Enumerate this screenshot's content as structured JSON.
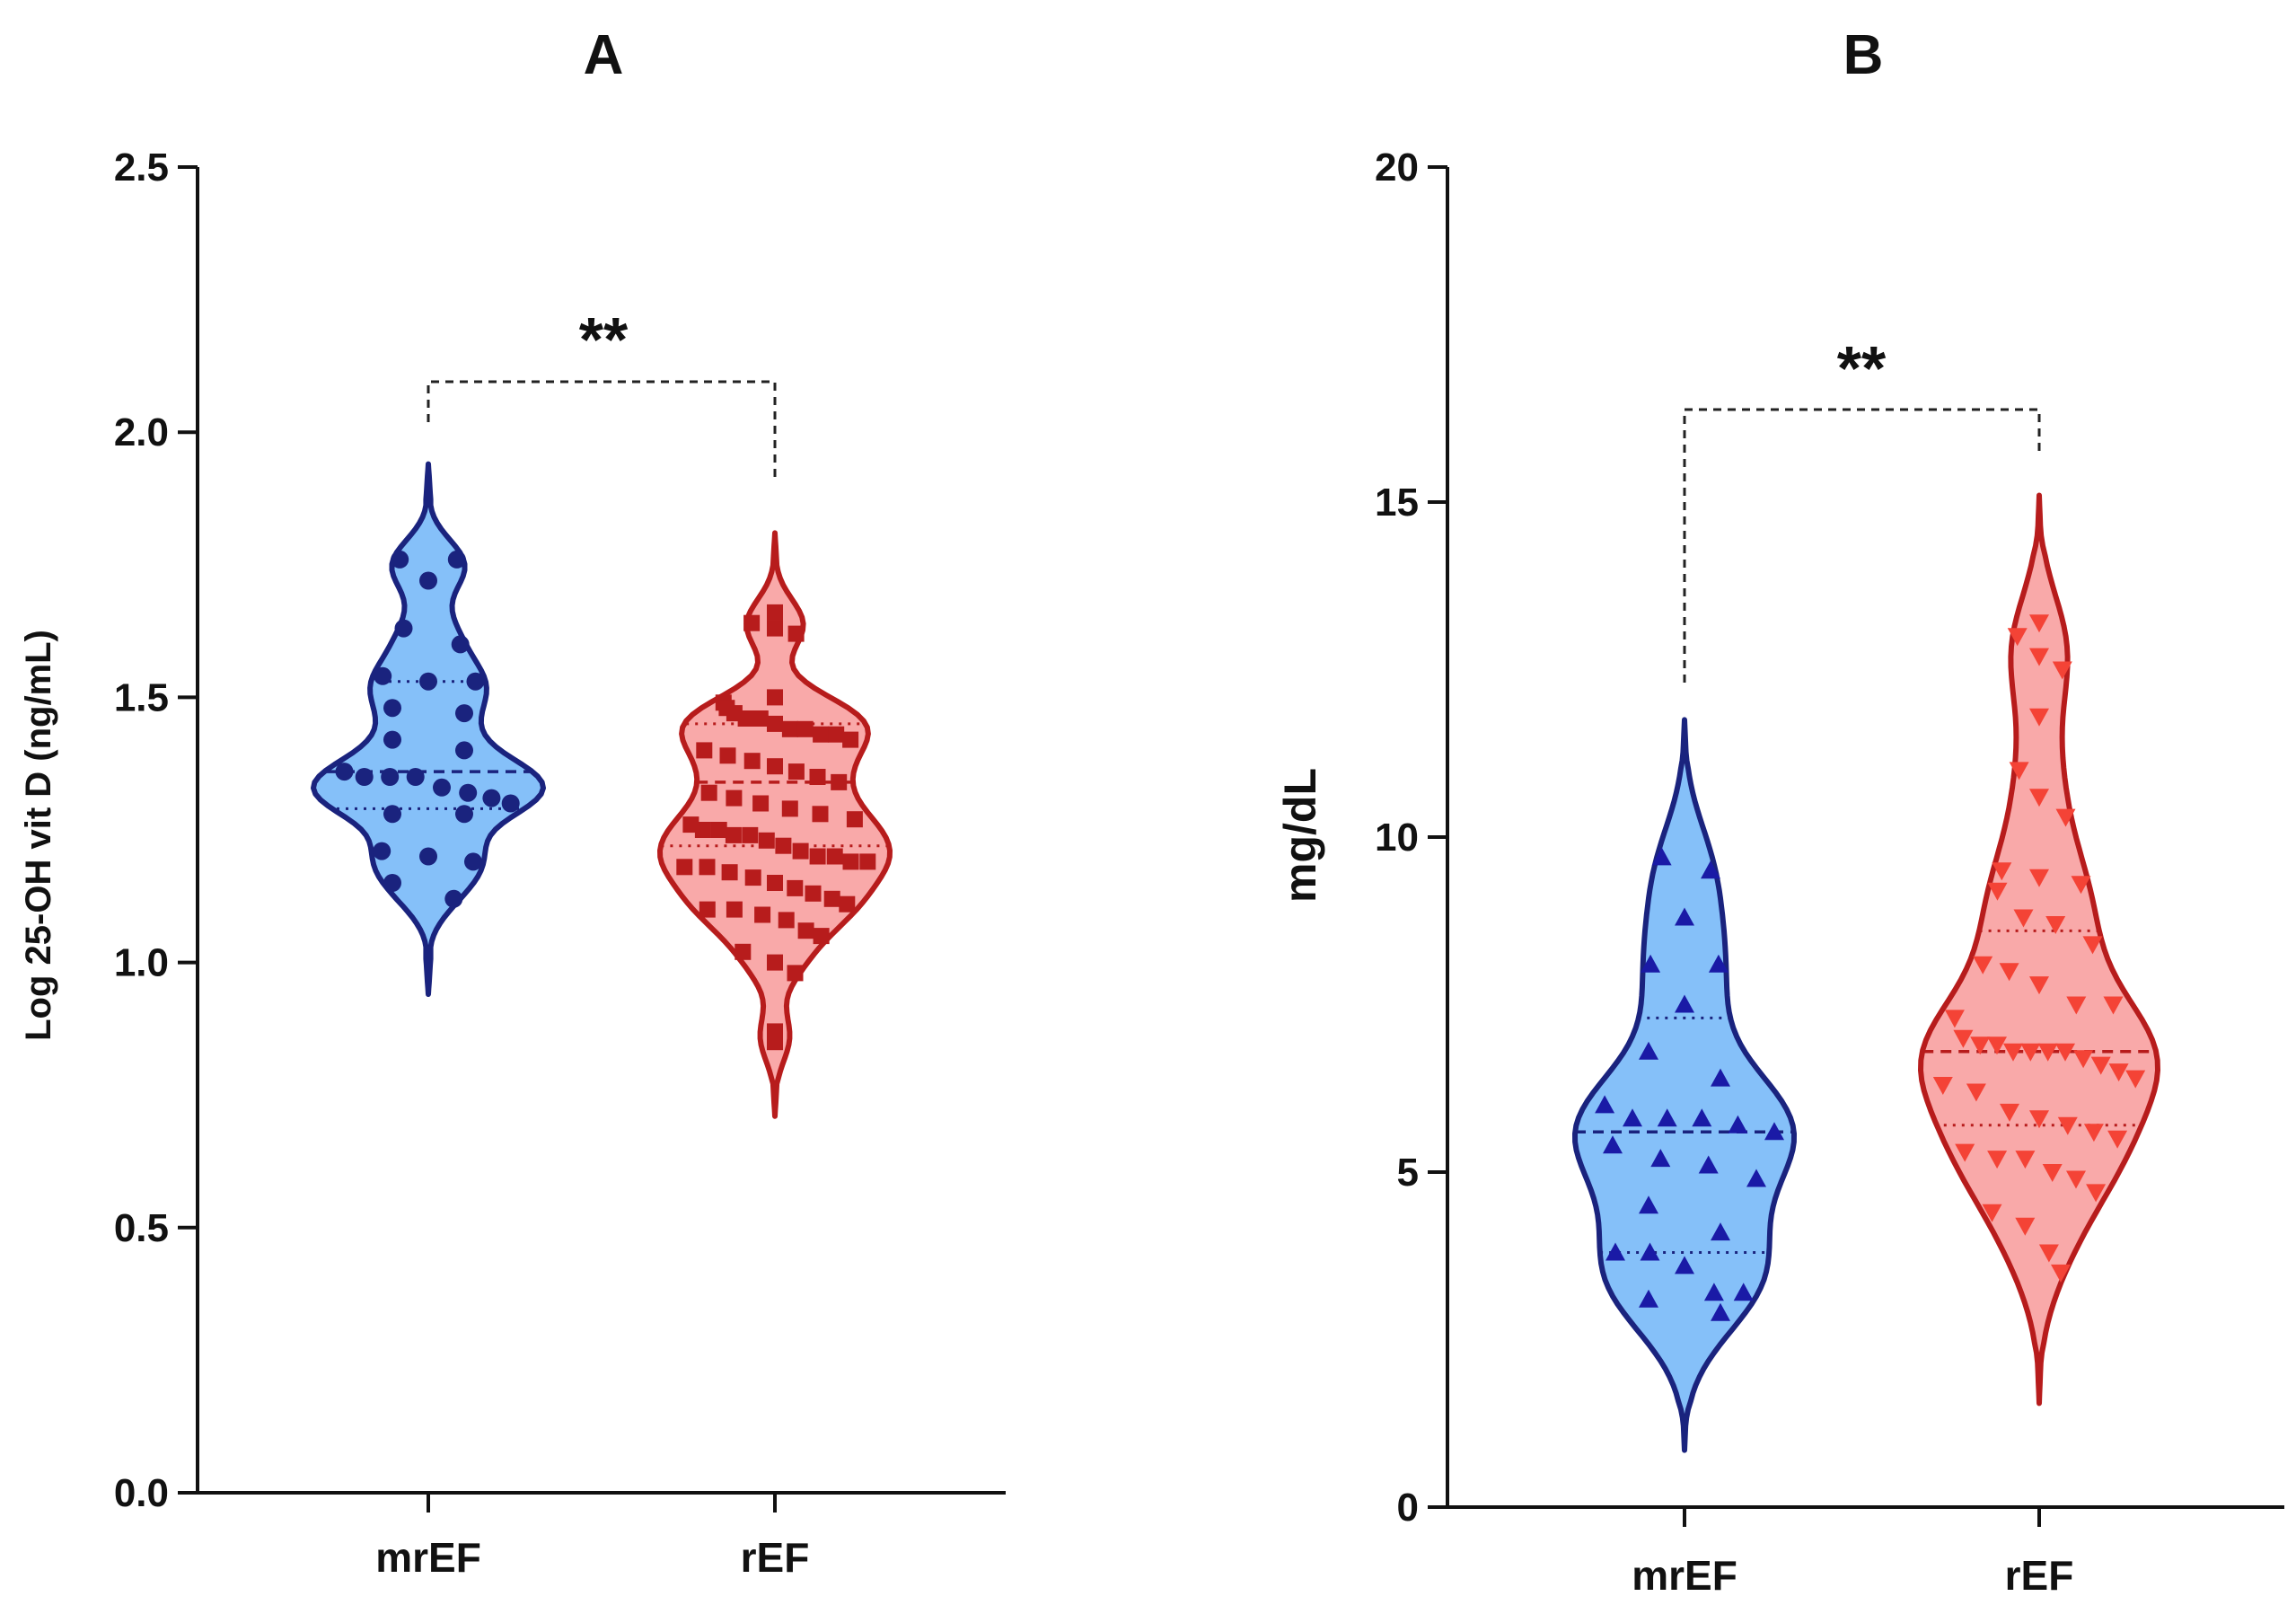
{
  "chart_data": [
    {
      "type": "violin",
      "panel": "A",
      "title": "A",
      "xlabel": "",
      "ylabel": "Log 25-OH vit D (ng/mL)",
      "ylim": [
        0.0,
        2.5
      ],
      "yticks": [
        0.0,
        0.5,
        1.0,
        1.5,
        2.0,
        2.5
      ],
      "ytick_labels": [
        "0.0",
        "0.5",
        "1.0",
        "1.5",
        "2.0",
        "2.5"
      ],
      "categories": [
        "mrEF",
        "rEF"
      ],
      "significance": "**",
      "series": [
        {
          "name": "mrEF",
          "fill": "#85c0f9",
          "stroke": "#1a237e",
          "point_color": "#1a237e",
          "marker": "circle",
          "range": [
            0.94,
            1.94
          ],
          "median": 1.36,
          "q1": 1.29,
          "q3": 1.53,
          "values": [
            1.76,
            1.76,
            1.72,
            1.63,
            1.6,
            1.54,
            1.53,
            1.53,
            1.48,
            1.47,
            1.42,
            1.4,
            1.36,
            1.35,
            1.35,
            1.35,
            1.33,
            1.32,
            1.31,
            1.3,
            1.28,
            1.28,
            1.21,
            1.2,
            1.19,
            1.15,
            1.12
          ]
        },
        {
          "name": "rEF",
          "fill": "#f9a9a9",
          "stroke": "#b71c1c",
          "point_color": "#b71c1c",
          "marker": "square",
          "range": [
            0.71,
            1.81
          ],
          "median": 1.34,
          "q1": 1.22,
          "q3": 1.45,
          "values": [
            1.66,
            1.64,
            1.63,
            1.62,
            1.5,
            1.49,
            1.48,
            1.47,
            1.46,
            1.46,
            1.45,
            1.44,
            1.44,
            1.43,
            1.43,
            1.42,
            1.4,
            1.39,
            1.38,
            1.37,
            1.36,
            1.35,
            1.34,
            1.32,
            1.31,
            1.3,
            1.29,
            1.28,
            1.27,
            1.26,
            1.25,
            1.25,
            1.24,
            1.24,
            1.23,
            1.22,
            1.21,
            1.2,
            1.2,
            1.19,
            1.19,
            1.18,
            1.18,
            1.17,
            1.16,
            1.15,
            1.14,
            1.13,
            1.12,
            1.11,
            1.1,
            1.1,
            1.09,
            1.08,
            1.06,
            1.05,
            1.02,
            1.0,
            0.98,
            0.87,
            0.85
          ]
        }
      ]
    },
    {
      "type": "violin",
      "panel": "B",
      "title": "B",
      "xlabel": "",
      "ylabel": "mg/dL",
      "ylim": [
        0,
        20
      ],
      "yticks": [
        0,
        5,
        10,
        15,
        20
      ],
      "ytick_labels": [
        "0",
        "5",
        "10",
        "15",
        "20"
      ],
      "categories": [
        "mrEF",
        "rEF"
      ],
      "significance": "**",
      "series": [
        {
          "name": "mrEF",
          "fill": "#85c0f9",
          "stroke": "#1a237e",
          "point_color": "#1a1aa6",
          "marker": "triangle-up",
          "range": [
            0.85,
            11.75
          ],
          "median": 5.6,
          "q1": 3.8,
          "q3": 7.3,
          "values": [
            9.7,
            9.5,
            8.8,
            8.1,
            8.1,
            7.5,
            6.8,
            6.4,
            6.0,
            5.8,
            5.8,
            5.8,
            5.7,
            5.6,
            5.4,
            5.2,
            5.1,
            4.9,
            4.5,
            4.1,
            3.8,
            3.8,
            3.6,
            3.2,
            3.2,
            3.1,
            2.9
          ]
        },
        {
          "name": "rEF",
          "fill": "#f9a9a9",
          "stroke": "#b71c1c",
          "point_color": "#f44336",
          "marker": "triangle-down",
          "range": [
            1.55,
            15.1
          ],
          "median": 6.8,
          "q1": 5.7,
          "q3": 8.6,
          "values": [
            13.2,
            13.0,
            12.7,
            12.5,
            11.8,
            11.0,
            10.6,
            10.3,
            9.5,
            9.4,
            9.3,
            9.2,
            8.8,
            8.7,
            8.4,
            8.1,
            8.0,
            7.8,
            7.5,
            7.5,
            7.3,
            7.0,
            6.9,
            6.9,
            6.8,
            6.8,
            6.8,
            6.8,
            6.7,
            6.6,
            6.5,
            6.4,
            6.3,
            6.2,
            5.9,
            5.8,
            5.7,
            5.6,
            5.5,
            5.3,
            5.2,
            5.2,
            5.0,
            4.9,
            4.7,
            4.4,
            4.2,
            3.8,
            3.5
          ]
        }
      ]
    }
  ]
}
